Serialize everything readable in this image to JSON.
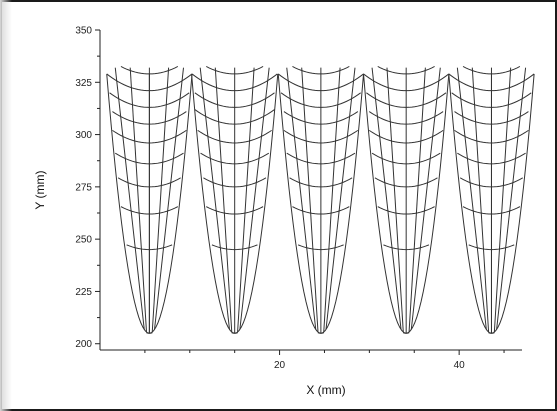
{
  "chart_data": {
    "type": "line",
    "title": "",
    "xlabel": "X (mm)",
    "ylabel": "Y (mm)",
    "xlim": [
      0,
      47
    ],
    "ylim": [
      197,
      350
    ],
    "x_ticks": [
      20,
      40
    ],
    "x_tick_labels": [
      "20",
      "40"
    ],
    "y_ticks": [
      200,
      225,
      250,
      275,
      300,
      325,
      350
    ],
    "y_tick_labels": [
      "200",
      "225",
      "250",
      "275",
      "300",
      "325",
      "350"
    ],
    "grid": false,
    "legend": "none",
    "line_color": "#333333",
    "description_of_series": "",
    "series": [
      {
        "values": [
          [
            5.5,
            205.0
          ],
          [
            15.0,
            205.0
          ],
          [
            24.6,
            205.0
          ],
          [
            34.1,
            205.0
          ],
          [
            43.6,
            205.0
          ]
        ]
      },
      {
        "values": [
          [
            5.5,
            329.0
          ],
          [
            43.6,
            329.0
          ]
        ]
      }
    ],
    "cells": {
      "centers": [
        5.5,
        15.0,
        24.6,
        34.1,
        43.6
      ],
      "half_widths": [
        4.75,
        4.8,
        4.75,
        4.75,
        4.75
      ],
      "bottom": 205.0,
      "top": 329.0,
      "arcs": [
        {
          "center_y": 205.0,
          "half_width": 1.7
        },
        {
          "center_y": 245.0,
          "half_width": 4.75
        },
        {
          "center_y": 262.0,
          "half_width": 4.75
        },
        {
          "center_y": 275.0,
          "half_width": 4.75
        },
        {
          "center_y": 286.0,
          "half_width": 4.75
        },
        {
          "center_y": 296.0,
          "half_width": 4.75
        },
        {
          "center_y": 305.0,
          "half_width": 4.75
        },
        {
          "center_y": 313.0,
          "half_width": 4.75
        },
        {
          "center_y": 321.0,
          "half_width": 4.75
        },
        {
          "center_y": 329.0,
          "half_width": 4.75
        }
      ],
      "rays": [
        -0.8,
        -0.45,
        0.0,
        0.45,
        0.8
      ]
    }
  }
}
